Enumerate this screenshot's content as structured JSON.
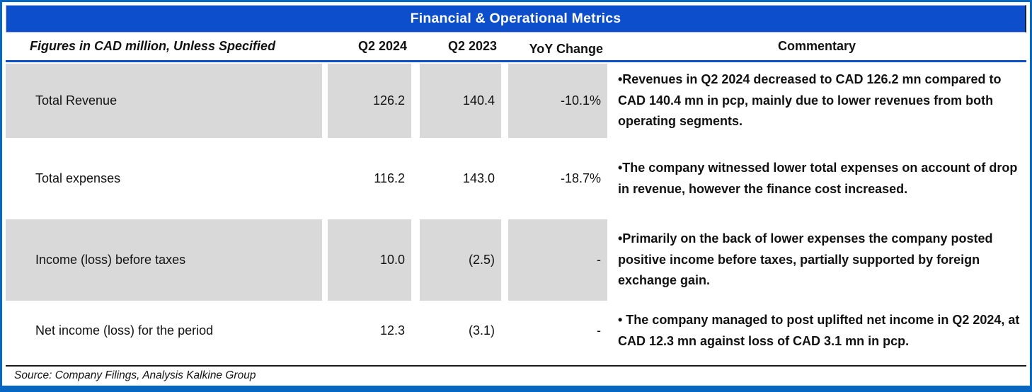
{
  "colors": {
    "accent_blue": "#0C4ECC",
    "border_blue": "#0667C3",
    "cell_gray": "#D9D9D9"
  },
  "title": "Financial & Operational Metrics",
  "header": {
    "figures_label": "Figures in CAD million, Unless Specified",
    "col_q2_2024": "Q2 2024",
    "col_q2_2023": "Q2 2023",
    "col_yoy": "YoY Change",
    "col_commentary": "Commentary"
  },
  "rows": [
    {
      "label": "Total Revenue",
      "q2_2024": "126.2",
      "q2_2023": "140.4",
      "yoy": "-10.1%",
      "commentary": "•Revenues in Q2 2024 decreased to CAD 126.2 mn compared to CAD 140.4 mn in pcp, mainly due to lower revenues from both operating segments."
    },
    {
      "label": "Total expenses",
      "q2_2024": "116.2",
      "q2_2023": "143.0",
      "yoy": "-18.7%",
      "commentary": "•The company witnessed lower total expenses on account of drop in revenue, however the finance cost increased."
    },
    {
      "label": "Income (loss) before taxes",
      "q2_2024": "10.0",
      "q2_2023": "(2.5)",
      "yoy": "-",
      "commentary": "•Primarily on the back of lower expenses the company posted positive income before taxes, partially supported by foreign exchange gain."
    },
    {
      "label": "Net income (loss) for the period",
      "q2_2024": "12.3",
      "q2_2023": "(3.1)",
      "yoy": "-",
      "commentary": "• The company managed to post uplifted net income in Q2 2024, at CAD 12.3 mn against loss of CAD 3.1 mn in pcp."
    }
  ],
  "source": "Source: Company Filings, Analysis Kalkine Group",
  "chart_data": {
    "type": "table",
    "title": "Financial & Operational Metrics",
    "columns": [
      "Figures in CAD million, Unless Specified",
      "Q2 2024",
      "Q2 2023",
      "YoY Change"
    ],
    "rows": [
      [
        "Total Revenue",
        126.2,
        140.4,
        "-10.1%"
      ],
      [
        "Total expenses",
        116.2,
        143.0,
        "-18.7%"
      ],
      [
        "Income (loss) before taxes",
        10.0,
        -2.5,
        "-"
      ],
      [
        "Net income (loss) for the period",
        12.3,
        -3.1,
        "-"
      ]
    ]
  }
}
